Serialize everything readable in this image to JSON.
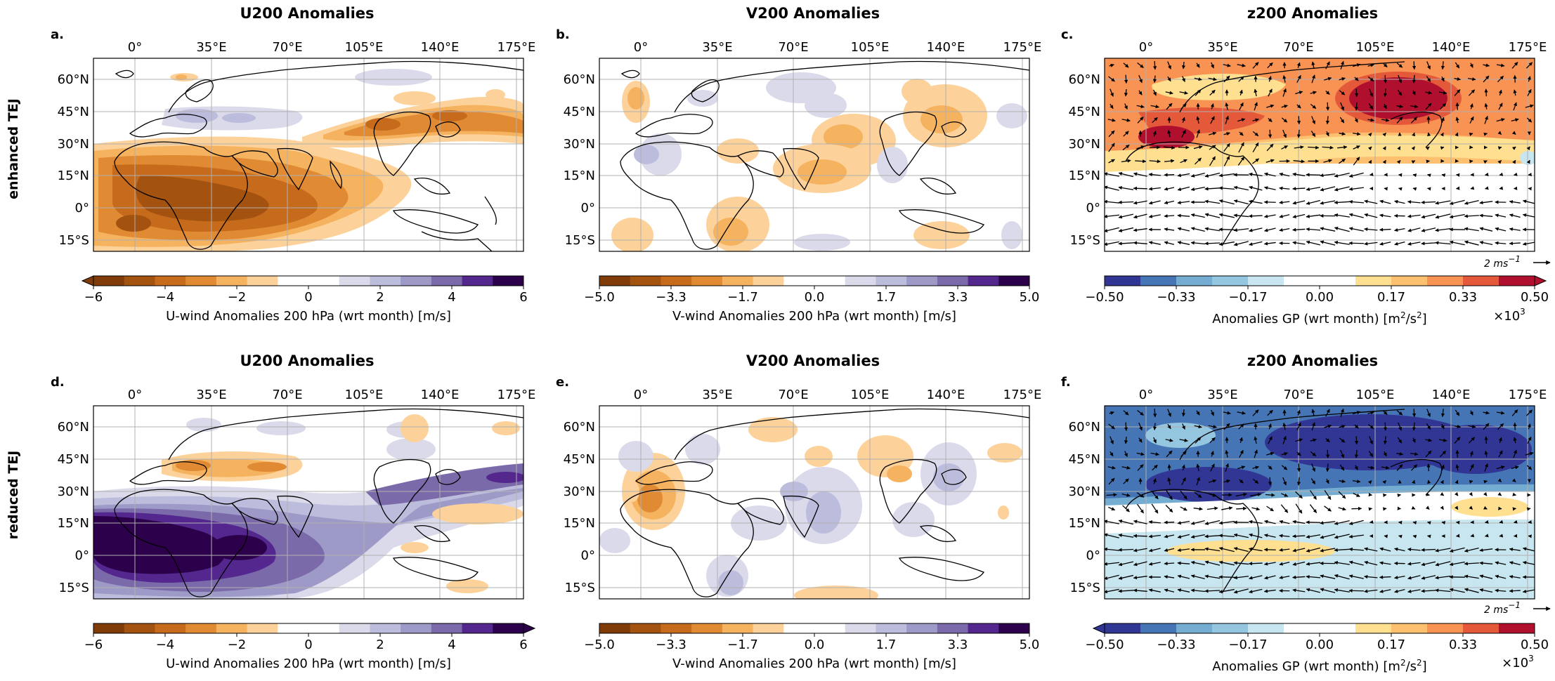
{
  "figure": {
    "rows": [
      {
        "label": "enhanced TEJ"
      },
      {
        "label": "reduced TEJ"
      }
    ],
    "column_titles": [
      "U200 Anomalies",
      "V200 Anomalies",
      "z200 Anomalies"
    ],
    "panel_letters": [
      "a.",
      "b.",
      "c.",
      "d.",
      "e.",
      "f."
    ],
    "lon_ticks": [
      "0°",
      "35°E",
      "70°E",
      "105°E",
      "140°E",
      "175°E"
    ],
    "lat_ticks": [
      "60°N",
      "45°N",
      "30°N",
      "15°N",
      "0°",
      "15°S"
    ],
    "vector_key": {
      "label": "2 ms",
      "exponent": "−1"
    }
  },
  "colorbars": {
    "u": {
      "label": "U-wind Anomalies 200 hPa (wrt month) [m/s]",
      "ticks": [
        "−6",
        "−4",
        "−2",
        "0",
        "2",
        "4",
        "6"
      ],
      "colors": [
        "#7f3b08",
        "#a35210",
        "#c66a1b",
        "#e08a34",
        "#f5b25f",
        "#fdd29a",
        "#ffffff",
        "#ffffff",
        "#dadaeb",
        "#bcbddc",
        "#9e9ac8",
        "#7b6aa9",
        "#54278f",
        "#2d004b"
      ]
    },
    "v": {
      "label": "V-wind Anomalies 200 hPa (wrt month) [m/s]",
      "ticks": [
        "−5.0",
        "−3.3",
        "−1.7",
        "0.0",
        "1.7",
        "3.3",
        "5.0"
      ],
      "colors": [
        "#7f3b08",
        "#a35210",
        "#c66a1b",
        "#e08a34",
        "#f5b25f",
        "#fdd29a",
        "#ffffff",
        "#ffffff",
        "#dadaeb",
        "#bcbddc",
        "#9e9ac8",
        "#7b6aa9",
        "#54278f",
        "#2d004b"
      ]
    },
    "z": {
      "label": "Anomalies GP (wrt month) [m",
      "label_unit_sup1": "2",
      "label_mid": "/s",
      "label_unit_sup2": "2",
      "label_end": "]",
      "multiplier": "×10",
      "multiplier_exp": "3",
      "ticks": [
        "−0.50",
        "−0.33",
        "−0.17",
        "0.00",
        "0.17",
        "0.33",
        "0.50"
      ],
      "colors": [
        "#313695",
        "#4575b4",
        "#74add1",
        "#95c6e0",
        "#c7e6f0",
        "#ffffff",
        "#ffffff",
        "#fee090",
        "#fdc070",
        "#f99353",
        "#e3593a",
        "#b10f2e"
      ]
    }
  },
  "legend_values": {
    "u_ticks": [
      -6,
      -4,
      -2,
      0,
      2,
      4,
      6
    ],
    "v_ticks": [
      -5.0,
      -3.3,
      -1.7,
      0.0,
      1.7,
      3.3,
      5.0
    ],
    "z_ticks": [
      -0.5,
      -0.33,
      -0.17,
      0.0,
      0.17,
      0.33,
      0.5
    ],
    "z_scale": 1000
  }
}
